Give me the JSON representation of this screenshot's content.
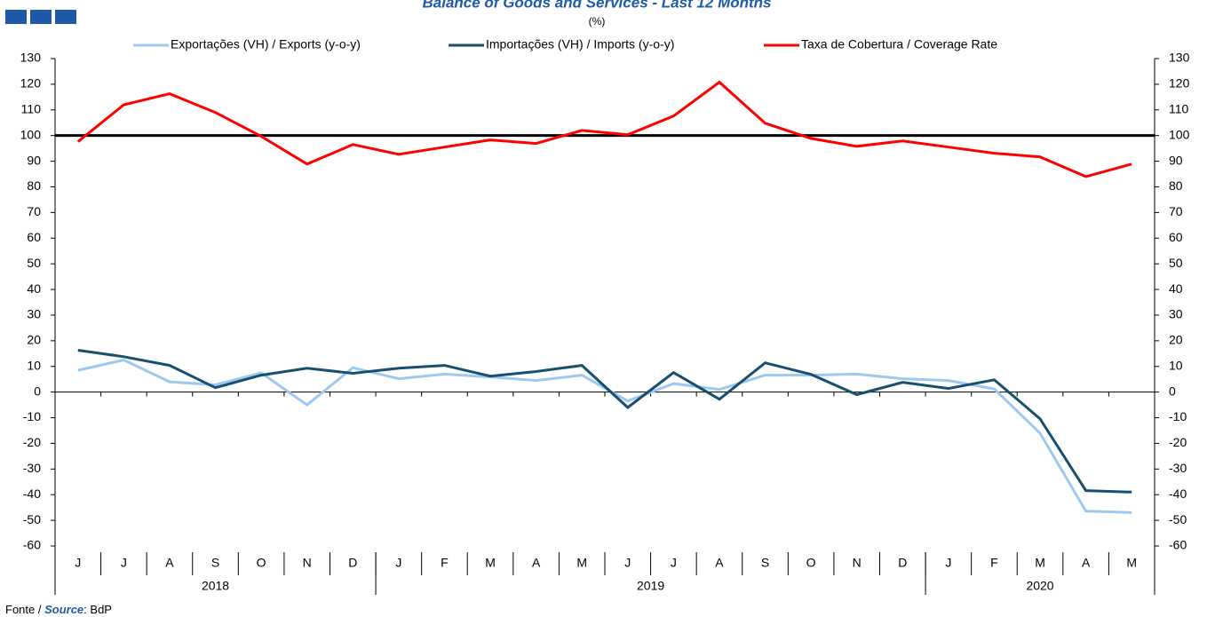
{
  "chart_data": {
    "type": "line",
    "title": "Balance of Goods and Services - Last 12 Months",
    "subtitle": "(%)",
    "categories": [
      "J",
      "J",
      "A",
      "S",
      "O",
      "N",
      "D",
      "J",
      "F",
      "M",
      "A",
      "M",
      "J",
      "J",
      "A",
      "S",
      "O",
      "N",
      "D",
      "J",
      "F",
      "M",
      "A",
      "M"
    ],
    "years": [
      {
        "label": "2018",
        "count": 7
      },
      {
        "label": "2019",
        "count": 12
      },
      {
        "label": "2020",
        "count": 5
      }
    ],
    "series": [
      {
        "name": "Exportações (VH) / Exports (y-o-y)",
        "color": "#9dc8f0",
        "values": [
          8.5,
          12.5,
          4,
          2.8,
          7.5,
          -5,
          9.5,
          5.2,
          7,
          5.9,
          4.5,
          6.6,
          -3.5,
          3.3,
          1,
          6.6,
          6.6,
          7,
          5.2,
          4.5,
          1.2,
          -16,
          -46.4,
          -47
        ]
      },
      {
        "name": "Importações (VH) / Imports (y-o-y)",
        "color": "#17506e",
        "values": [
          16.3,
          13.8,
          10.4,
          1.7,
          6.6,
          9.3,
          7.3,
          9.3,
          10.4,
          6.2,
          8,
          10.4,
          -6,
          7.6,
          -2.8,
          11.4,
          6.9,
          -1,
          3.8,
          1.4,
          4.8,
          -10.4,
          -38.4,
          -39
        ]
      },
      {
        "name": "Taxa de Cobertura / Coverage Rate",
        "color": "#ff0000",
        "values": [
          97.6,
          112,
          116.3,
          109,
          99.7,
          88.9,
          96.5,
          92.7,
          95.5,
          98.3,
          96.9,
          102,
          100.3,
          107.6,
          120.8,
          104.8,
          98.9,
          95.8,
          97.9,
          95.5,
          93.1,
          91.7,
          84,
          88.9
        ]
      }
    ],
    "reference_line": 100,
    "ylim": [
      -60,
      130
    ],
    "yticks": [
      -60,
      -50,
      -40,
      -30,
      -20,
      -10,
      0,
      10,
      20,
      30,
      40,
      50,
      60,
      70,
      80,
      90,
      100,
      110,
      120,
      130
    ],
    "source": {
      "label_pt": "Fonte /",
      "label_en": "Source",
      "text": ": BdP"
    }
  }
}
